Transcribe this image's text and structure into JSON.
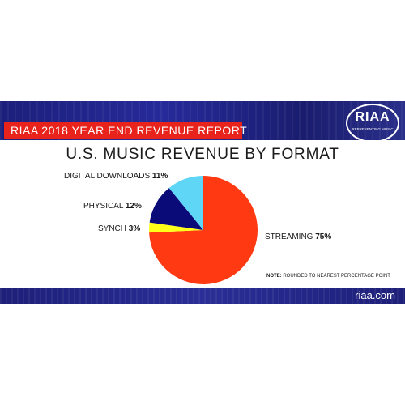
{
  "header": {
    "report_title": "RIAA 2018 YEAR END REVENUE REPORT",
    "logo_text": "RIAA",
    "logo_subtext": "REPRESENTING MUSIC"
  },
  "footer": {
    "note_label": "NOTE:",
    "note_text": "ROUNDED TO NEAREST PERCENTAGE POINT",
    "website": "riaa.com"
  },
  "colors": {
    "banner": "#23268a",
    "report_red": "#e8231b",
    "streaming": "#ff3a12",
    "synch": "#ffff1a",
    "physical": "#0a0a78",
    "digital_downloads": "#5fd6f5"
  },
  "chart_data": {
    "type": "pie",
    "title": "U.S. MUSIC REVENUE BY FORMAT",
    "categories": [
      "STREAMING",
      "SYNCH",
      "PHYSICAL",
      "DIGITAL DOWNLOADS"
    ],
    "values": [
      75,
      3,
      12,
      11
    ],
    "value_labels": [
      "75%",
      "3%",
      "12%",
      "11%"
    ],
    "colors": [
      "#ff3a12",
      "#ffff1a",
      "#0a0a78",
      "#5fd6f5"
    ]
  }
}
